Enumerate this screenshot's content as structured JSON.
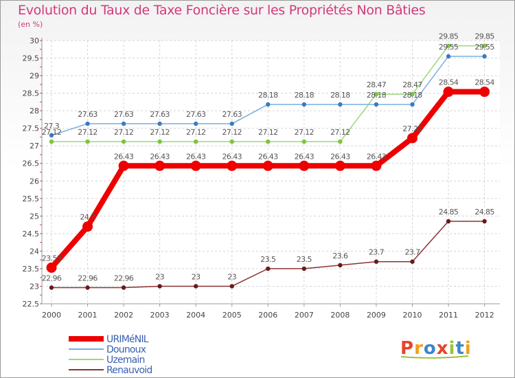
{
  "page": {
    "title": "Evolution du Taux de Taxe Foncière sur les Propriétés Non Bâties",
    "unit": "(en %)",
    "logo": "Proxiti",
    "logo_letters": [
      {
        "char": "P",
        "color": "#e8442a"
      },
      {
        "char": "r",
        "color": "#f0a01a"
      },
      {
        "char": "o",
        "color": "#3e86c9"
      },
      {
        "char": "x",
        "color": "#e8442a"
      },
      {
        "char": "i",
        "color": "#9ac23b"
      },
      {
        "char": "t",
        "color": "#3e86c9"
      },
      {
        "char": "i",
        "color": "#f0a01a"
      }
    ]
  },
  "chart_data": {
    "type": "line",
    "title": "Evolution du Taux de Taxe Foncière sur les Propriétés Non Bâties",
    "ylabel": "(en %)",
    "xlabel": "",
    "ylim": [
      22.5,
      30
    ],
    "yticks": [
      22.5,
      23,
      23.5,
      24,
      24.5,
      25,
      25.5,
      26,
      26.5,
      27,
      27.5,
      28,
      28.5,
      29,
      29.5,
      30
    ],
    "ytick_labels": [
      "22.5",
      "23",
      "23.5",
      "24",
      "24.5",
      "25",
      "25.5",
      "26",
      "26.5",
      "27",
      "27.5",
      "28",
      "28.5",
      "29",
      "29.5",
      "30"
    ],
    "x": [
      "2000",
      "2001",
      "2002",
      "2003",
      "2004",
      "2005",
      "2006",
      "2007",
      "2008",
      "2009",
      "2010",
      "2011",
      "2012"
    ],
    "grid": true,
    "legend_position": "bottom-left",
    "series": [
      {
        "name": "Renauvoid",
        "color": "#8a3333",
        "marker": "#6a1a1a",
        "values": [
          22.96,
          22.96,
          22.96,
          23,
          23,
          23,
          23.5,
          23.5,
          23.6,
          23.7,
          23.7,
          24.85,
          24.85
        ],
        "labels": [
          "22.96",
          "22.96",
          "22.96",
          "23",
          "23",
          "23",
          "23.5",
          "23.5",
          "23.6",
          "23.7",
          "23.7",
          "24.85",
          "24.85"
        ]
      },
      {
        "name": "Uzemain",
        "color": "#9ad87a",
        "marker": "#7cc43c",
        "values": [
          27.12,
          27.12,
          27.12,
          27.12,
          27.12,
          27.12,
          27.12,
          27.12,
          27.12,
          28.47,
          28.47,
          29.85,
          29.85
        ],
        "labels": [
          "27.12",
          "27.12",
          "27.12",
          "27.12",
          "27.12",
          "27.12",
          "27.12",
          "27.12",
          "27.12",
          "28.47",
          "28.47",
          "29.85",
          "29.85"
        ]
      },
      {
        "name": "Dounoux",
        "color": "#7aaedc",
        "marker": "#3c7bbf",
        "values": [
          27.3,
          27.63,
          27.63,
          27.63,
          27.63,
          27.63,
          28.18,
          28.18,
          28.18,
          28.18,
          28.18,
          29.55,
          29.55
        ],
        "labels": [
          "27.3",
          "27.63",
          "27.63",
          "27.63",
          "27.63",
          "27.63",
          "28.18",
          "28.18",
          "28.18",
          "28.18",
          "28.18",
          "29.55",
          "29.55"
        ]
      },
      {
        "name": "URIMéNIL",
        "color": "#ee0000",
        "marker": "#ee0000",
        "values": [
          23.53,
          24.7,
          26.43,
          26.43,
          26.43,
          26.43,
          26.43,
          26.43,
          26.43,
          26.43,
          27.22,
          28.54,
          28.54
        ],
        "labels": [
          "23.53",
          "24.7",
          "26.43",
          "26.43",
          "26.43",
          "26.43",
          "26.43",
          "26.43",
          "26.43",
          "26.43",
          "27.22",
          "28.54",
          "28.54"
        ]
      }
    ],
    "legend": [
      "URIMéNIL",
      "Dounoux",
      "Uzemain",
      "Renauvoid"
    ]
  }
}
